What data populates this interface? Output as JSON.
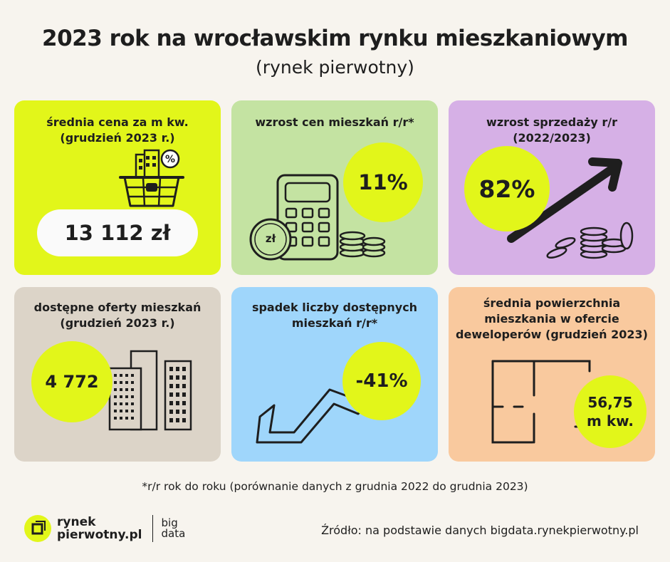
{
  "header": {
    "title": "2023 rok na wrocławskim rynku mieszkaniowym",
    "subtitle": "(rynek pierwotny)"
  },
  "cards": [
    {
      "label_line1": "średnia cena za m kw.",
      "label_line2": "(grudzień 2023 r.)",
      "value": "13 112 zł",
      "bg": "#e2f61a",
      "icon": "shopping-basket-buildings-icon"
    },
    {
      "label_line1": "wzrost cen mieszkań r/r*",
      "value": "11%",
      "bg": "#c4e3a2",
      "icon": "calculator-coins-icon",
      "coin_text": "zł"
    },
    {
      "label_line1": "wzrost sprzedaży r/r",
      "label_line2": "(2022/2023)",
      "value": "82%",
      "bg": "#d6b0e6",
      "icon": "arrow-up-coins-icon"
    },
    {
      "label_line1": "dostępne oferty mieszkań",
      "label_line2": "(grudzień 2023 r.)",
      "value": "4 772",
      "bg": "#dcd4c8",
      "icon": "apartment-buildings-icon"
    },
    {
      "label_line1": "spadek liczby dostępnych",
      "label_line2": "mieszkań r/r*",
      "value": "-41%",
      "bg": "#9fd6fb",
      "icon": "arrow-down-zigzag-icon"
    },
    {
      "label_line1": "średnia powierzchnia",
      "label_line2": "mieszkania w ofercie",
      "label_line3": "deweloperów (grudzień 2023)",
      "value_line1": "56,75",
      "value_line2": "m kw.",
      "bg": "#f9c99e",
      "icon": "floor-plan-icon"
    }
  ],
  "footnote": "*r/r rok do roku (porównanie danych z grudnia 2022 do grudnia 2023)",
  "footer": {
    "logo_line1": "rynek",
    "logo_line2": "pierwotny.pl",
    "logo2_line1": "big",
    "logo2_line2": "data",
    "source": "Źródło: na podstawie danych bigdata.rynekpierwotny.pl"
  },
  "colors": {
    "accent": "#e2f61a",
    "background": "#f7f4ee",
    "text": "#1e1e1e"
  }
}
